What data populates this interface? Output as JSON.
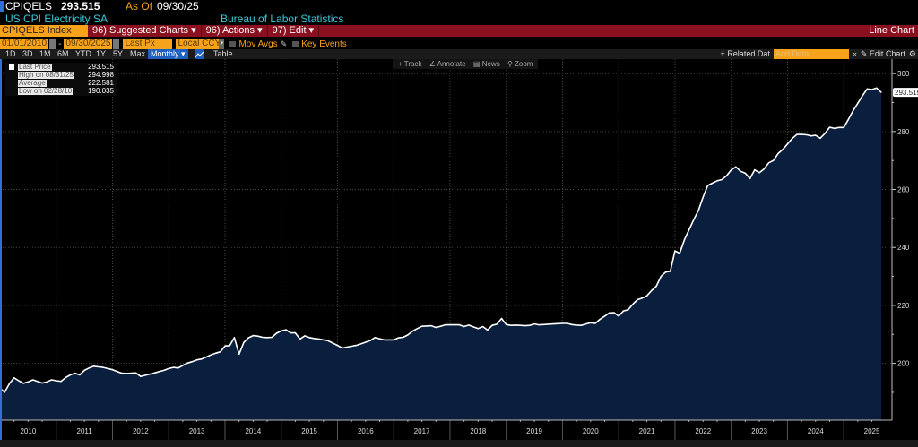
{
  "header": {
    "ticker": "CPIQELS",
    "last_price": "293.515",
    "as_of_label": "As Of",
    "as_of_date": "09/30/25",
    "name": "US CPI Electricity SA",
    "source": "Bureau of Labor Statistics"
  },
  "menubar": {
    "security": "CPIQELS Index",
    "suggested_charts": "96) Suggested Charts ▾",
    "actions": "96) Actions ▾",
    "edit": "97) Edit ▾",
    "view": "Line Chart"
  },
  "controls": {
    "start_date": "01/01/2010",
    "end_date": "09/30/2025",
    "field": "Last Px",
    "currency": "Local CCY",
    "mov_avgs": "Mov Avgs",
    "key_events": "Key Events"
  },
  "periods": [
    "1D",
    "3D",
    "1M",
    "6M",
    "YTD",
    "1Y",
    "5Y",
    "Max"
  ],
  "frequency": "Monthly ▾",
  "table_label": "Table",
  "right_tools": {
    "related": "+ Related Dat",
    "add_data_placeholder": "Add Data",
    "collapse": "«",
    "edit_chart": "✎ Edit Chart",
    "gear": "⚙"
  },
  "chart_tools": [
    "+ Track",
    "∠ Annotate",
    "▤ News",
    "⚲ Zoom"
  ],
  "legend": [
    {
      "label": "Last Price",
      "value": "293.515"
    },
    {
      "label": "High on 08/31/25",
      "value": "294.998"
    },
    {
      "label": "Average",
      "value": "222.581"
    },
    {
      "label": "Low on 02/28/10",
      "value": "190.035"
    }
  ],
  "colors": {
    "accent": "#f7a21b",
    "menubar": "#8a101f",
    "fill": "#0a1f3d",
    "line": "#ffffff",
    "title": "#3cc8d8"
  },
  "chart_data": {
    "type": "area",
    "frequency": "monthly",
    "start": "2010-01",
    "end": "2025-09",
    "ylim": [
      180.4,
      305
    ],
    "y_ticks": [
      200,
      220,
      240,
      260,
      280,
      300
    ],
    "x_tick_labels": [
      "2010",
      "2011",
      "2012",
      "2013",
      "2014",
      "2015",
      "2016",
      "2017",
      "2018",
      "2019",
      "2020",
      "2021",
      "2022",
      "2023",
      "2024",
      "2025"
    ],
    "last_value_label": "293.515",
    "grid": true,
    "y_axis_side": "right",
    "values": [
      191.4,
      190.035,
      193.0,
      195.0,
      194.0,
      193.1,
      193.6,
      194.3,
      193.8,
      193.2,
      193.6,
      194.3,
      194.0,
      193.8,
      195.1,
      196.0,
      196.6,
      196.0,
      197.6,
      198.4,
      199.0,
      198.8,
      198.6,
      198.2,
      197.8,
      197.2,
      196.6,
      196.5,
      196.6,
      196.7,
      195.5,
      195.9,
      196.3,
      196.7,
      197.2,
      197.6,
      198.2,
      198.6,
      198.4,
      199.3,
      200.1,
      200.6,
      201.2,
      201.5,
      202.2,
      202.9,
      203.5,
      204.0,
      206.0,
      206.1,
      208.9,
      203.2,
      207.2,
      208.8,
      209.6,
      209.4,
      209.0,
      208.9,
      209.0,
      210.4,
      211.2,
      211.6,
      210.5,
      210.5,
      208.4,
      209.5,
      208.9,
      208.6,
      208.4,
      208.1,
      207.8,
      207.0,
      206.2,
      205.3,
      205.6,
      205.9,
      206.2,
      206.7,
      207.3,
      207.9,
      208.9,
      208.5,
      208.1,
      208.1,
      208.1,
      208.8,
      209.0,
      209.8,
      211.1,
      212.0,
      212.8,
      212.9,
      213.0,
      212.4,
      212.8,
      213.3,
      213.3,
      213.3,
      213.3,
      212.7,
      213.2,
      212.6,
      212.0,
      212.7,
      211.5,
      213.1,
      213.5,
      215.5,
      213.4,
      213.1,
      213.2,
      213.1,
      213.0,
      213.1,
      213.6,
      213.3,
      213.4,
      213.5,
      213.6,
      213.7,
      213.8,
      213.8,
      213.4,
      213.2,
      213.1,
      213.6,
      214.0,
      213.8,
      215.2,
      216.3,
      217.4,
      217.5,
      216.3,
      218.1,
      218.5,
      220.4,
      222.0,
      222.5,
      223.3,
      225.1,
      226.6,
      230.0,
      231.5,
      231.8,
      238.8,
      238.0,
      242.6,
      246.1,
      249.6,
      252.8,
      257.4,
      261.4,
      262.2,
      263.0,
      263.4,
      264.7,
      266.8,
      267.8,
      266.3,
      265.6,
      263.8,
      266.8,
      265.8,
      267.1,
      269.2,
      270.0,
      272.4,
      273.8,
      275.7,
      277.6,
      279.0,
      279.0,
      278.9,
      278.5,
      278.7,
      277.7,
      279.4,
      281.5,
      281.1,
      281.4,
      281.4,
      284.2,
      287.2,
      289.8,
      292.4,
      294.7,
      294.5,
      294.998,
      293.515
    ]
  }
}
